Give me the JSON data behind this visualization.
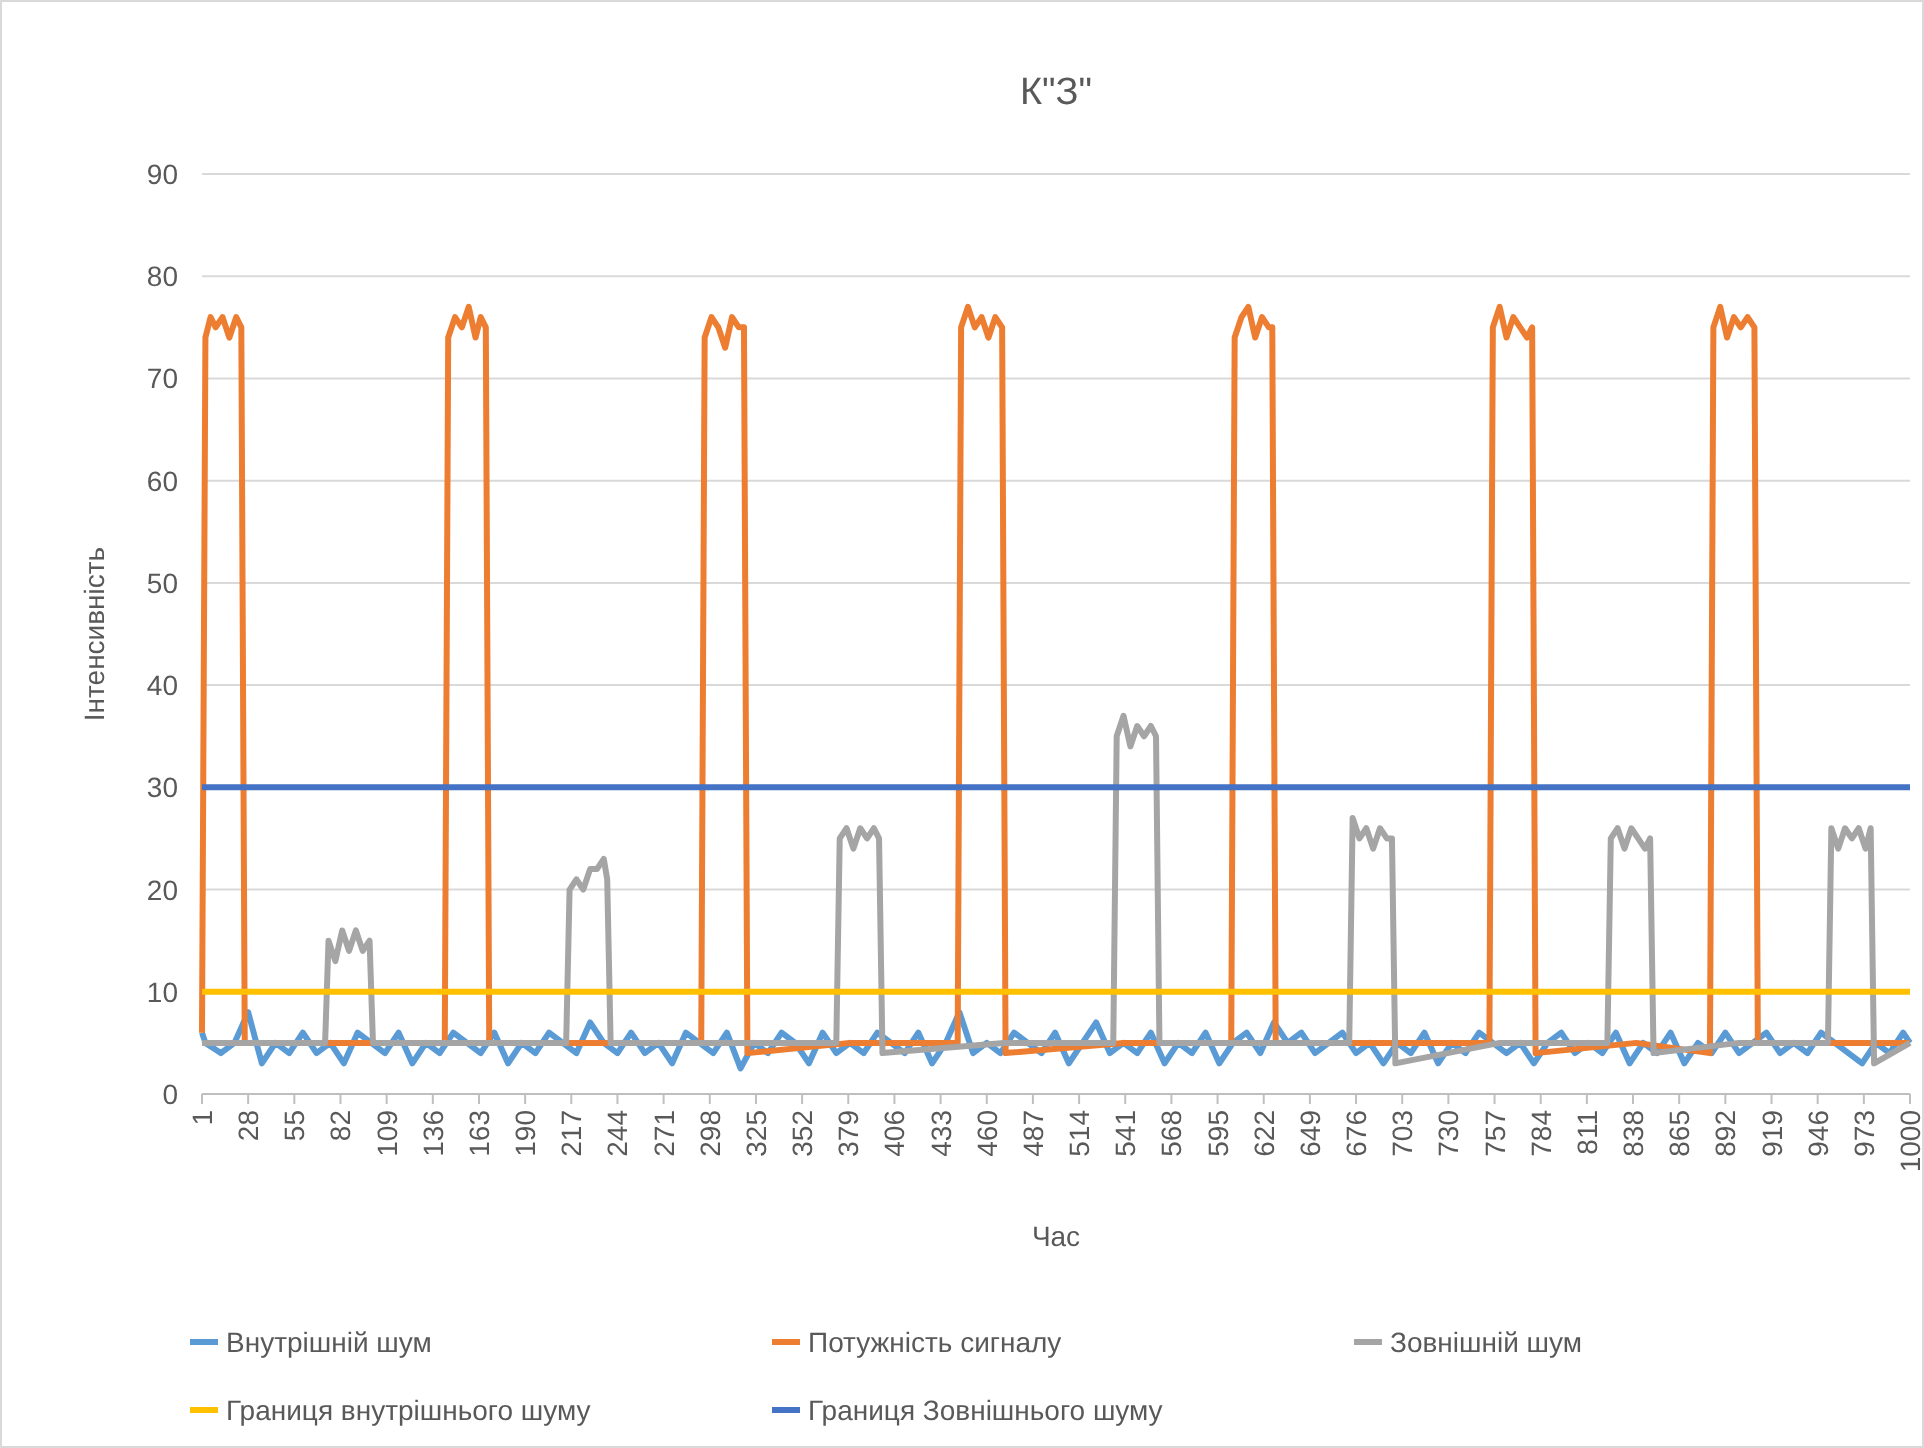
{
  "chart_data": {
    "type": "line",
    "title": "К\"З\"",
    "xlabel": "Час",
    "ylabel": "Інтенсивність",
    "xlim": [
      1,
      1000
    ],
    "xticks": [
      1,
      28,
      55,
      82,
      109,
      136,
      163,
      190,
      217,
      244,
      271,
      298,
      325,
      352,
      379,
      406,
      433,
      460,
      487,
      514,
      541,
      568,
      595,
      622,
      649,
      676,
      703,
      730,
      757,
      784,
      811,
      838,
      865,
      892,
      919,
      946,
      973,
      1000
    ],
    "ylim": [
      0,
      90
    ],
    "yticks": [
      0,
      10,
      20,
      30,
      40,
      50,
      60,
      70,
      80,
      90
    ],
    "grid": "y",
    "legend": "bottom",
    "marker": "none",
    "line_style": "solid",
    "series": [
      {
        "name": "Внутрішній шум",
        "color": "#5b9bd5",
        "x": [
          1,
          3,
          12,
          20,
          28,
          36,
          44,
          52,
          60,
          68,
          76,
          84,
          92,
          100,
          108,
          116,
          124,
          132,
          140,
          148,
          156,
          164,
          172,
          180,
          188,
          196,
          204,
          212,
          220,
          228,
          236,
          244,
          252,
          260,
          268,
          276,
          284,
          292,
          300,
          308,
          316,
          324,
          332,
          340,
          348,
          356,
          364,
          372,
          380,
          388,
          396,
          404,
          412,
          420,
          428,
          436,
          444,
          452,
          460,
          468,
          476,
          484,
          492,
          500,
          508,
          516,
          524,
          532,
          540,
          548,
          556,
          564,
          572,
          580,
          588,
          596,
          604,
          612,
          620,
          628,
          636,
          644,
          652,
          660,
          668,
          676,
          684,
          692,
          700,
          708,
          716,
          724,
          732,
          740,
          748,
          756,
          764,
          772,
          780,
          788,
          796,
          804,
          812,
          820,
          828,
          836,
          844,
          852,
          860,
          868,
          876,
          884,
          892,
          900,
          908,
          916,
          924,
          932,
          940,
          948,
          956,
          964,
          972,
          980,
          988,
          996,
          1000
        ],
        "values": [
          6,
          5,
          4,
          5,
          8,
          3,
          5,
          4,
          6,
          4,
          5,
          3,
          6,
          5,
          4,
          6,
          3,
          5,
          4,
          6,
          5,
          4,
          6,
          3,
          5,
          4,
          6,
          5,
          4,
          7,
          5,
          4,
          6,
          4,
          5,
          3,
          6,
          5,
          4,
          6,
          2.5,
          5,
          4,
          6,
          5,
          3,
          6,
          4,
          5,
          4,
          6,
          5,
          4,
          6,
          3,
          5,
          8,
          4,
          5,
          4,
          6,
          5,
          4,
          6,
          3,
          5,
          7,
          4,
          5,
          4,
          6,
          3,
          5,
          4,
          6,
          3,
          5,
          6,
          4,
          7,
          5,
          6,
          4,
          5,
          6,
          4,
          5,
          3,
          5,
          4,
          6,
          3,
          5,
          4,
          6,
          5,
          4,
          5,
          3,
          5,
          6,
          4,
          5,
          4,
          6,
          3,
          5,
          4,
          6,
          3,
          5,
          4,
          6,
          4,
          5,
          6,
          4,
          5,
          4,
          6,
          5,
          4,
          3,
          5,
          4,
          6,
          5
        ]
      },
      {
        "name": "Потужність сигналу",
        "color": "#ed7d31",
        "x": [
          1,
          3,
          6,
          9,
          13,
          17,
          21,
          24,
          26,
          100,
          143,
          145,
          149,
          153,
          157,
          161,
          164,
          167,
          169,
          230,
          293,
          295,
          299,
          303,
          307,
          311,
          315,
          318,
          320,
          380,
          443,
          445,
          449,
          453,
          457,
          461,
          465,
          469,
          471,
          540,
          603,
          605,
          609,
          613,
          617,
          621,
          625,
          627,
          629,
          690,
          754,
          756,
          760,
          764,
          768,
          772,
          776,
          779,
          781,
          840,
          883,
          885,
          889,
          893,
          897,
          901,
          905,
          909,
          911,
          960,
          1000
        ],
        "values": [
          6,
          74,
          76,
          75,
          76,
          74,
          76,
          75,
          5,
          5,
          5,
          74,
          76,
          75,
          77,
          74,
          76,
          75,
          5,
          5,
          5,
          74,
          76,
          75,
          73,
          76,
          75,
          75,
          4,
          5,
          5,
          75,
          77,
          75,
          76,
          74,
          76,
          75,
          4,
          5,
          5,
          74,
          76,
          77,
          74,
          76,
          75,
          75,
          5,
          5,
          5,
          75,
          77,
          74,
          76,
          75,
          74,
          75,
          4,
          5,
          4,
          75,
          77,
          74,
          76,
          75,
          76,
          75,
          5,
          5,
          5
        ]
      },
      {
        "name": "Зовнішній шум",
        "color": "#a5a5a5",
        "x": [
          1,
          40,
          73,
          75,
          79,
          83,
          87,
          91,
          95,
          99,
          101,
          160,
          214,
          216,
          220,
          224,
          228,
          232,
          236,
          238,
          240,
          300,
          372,
          374,
          378,
          382,
          386,
          390,
          394,
          397,
          399,
          470,
          534,
          536,
          540,
          544,
          548,
          552,
          556,
          559,
          561,
          620,
          672,
          674,
          678,
          682,
          686,
          690,
          694,
          697,
          699,
          760,
          823,
          825,
          829,
          833,
          837,
          841,
          845,
          848,
          850,
          900,
          952,
          954,
          958,
          962,
          966,
          970,
          974,
          977,
          979,
          1000
        ],
        "values": [
          5,
          5,
          5,
          15,
          13,
          16,
          14,
          16,
          14,
          15,
          5,
          5,
          5,
          20,
          21,
          20,
          22,
          22,
          23,
          21,
          5,
          5,
          5,
          25,
          26,
          24,
          26,
          25,
          26,
          25,
          4,
          5,
          5,
          35,
          37,
          34,
          36,
          35,
          36,
          35,
          5,
          5,
          5,
          27,
          25,
          26,
          24,
          26,
          25,
          25,
          3,
          5,
          5,
          25,
          26,
          24,
          26,
          25,
          24,
          25,
          4,
          5,
          5,
          26,
          24,
          26,
          25,
          26,
          24,
          26,
          3,
          5
        ]
      },
      {
        "name": "Границя внутрішнього шуму",
        "color": "#ffc000",
        "x": [
          1,
          1000
        ],
        "values": [
          10,
          10
        ]
      },
      {
        "name": "Границя Зовнішнього шуму",
        "color": "#4472c4",
        "x": [
          1,
          1000
        ],
        "values": [
          30,
          30
        ]
      }
    ]
  }
}
